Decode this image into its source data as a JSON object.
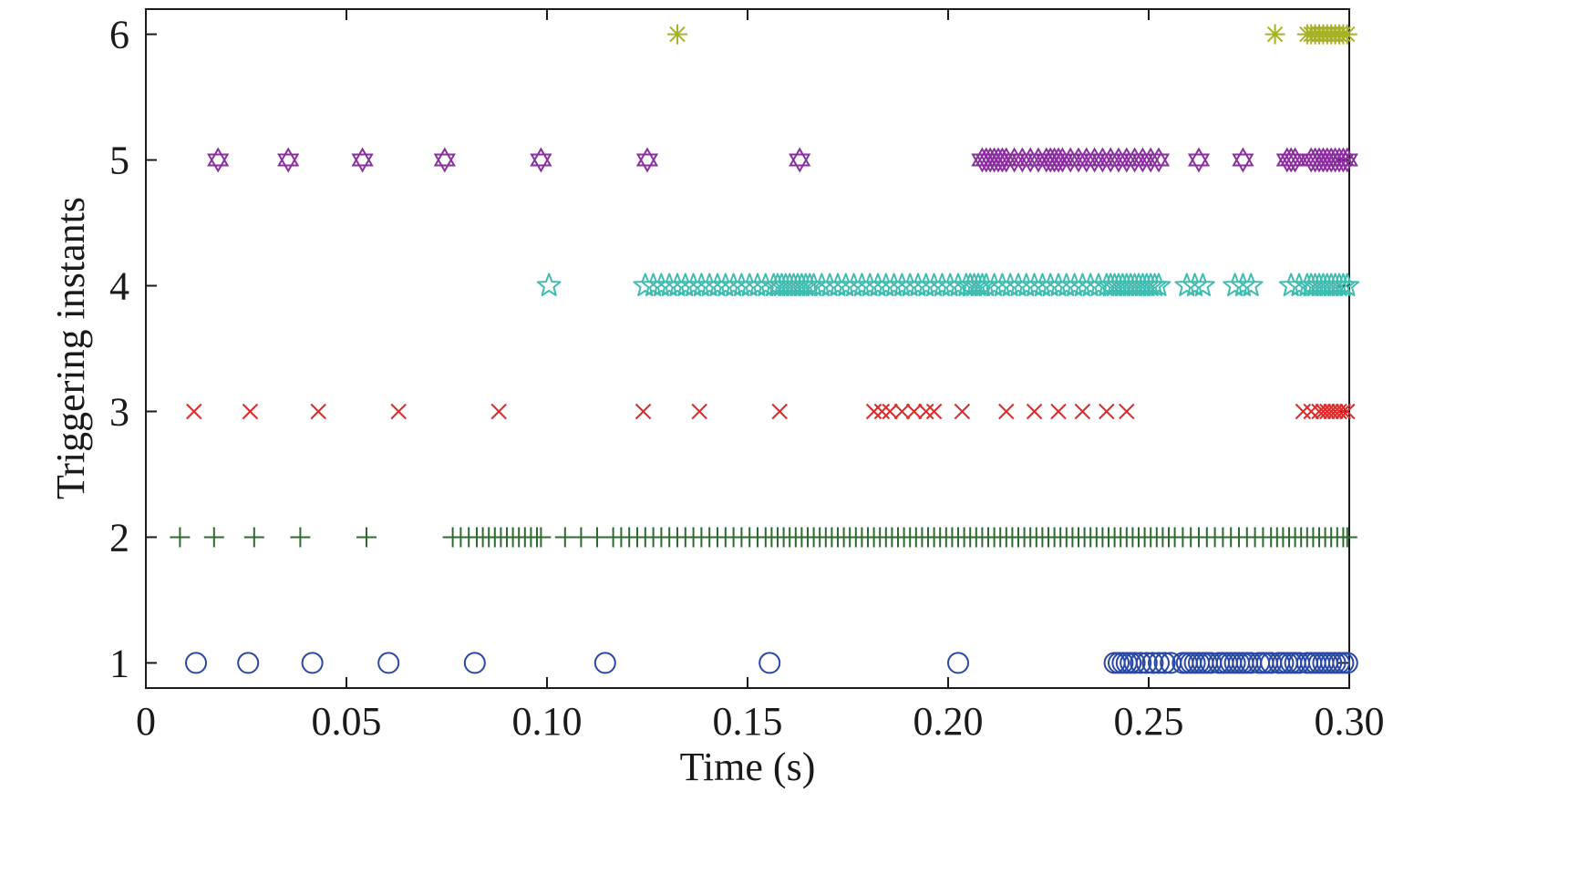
{
  "chart_data": {
    "type": "scatter",
    "title": "",
    "xlabel": "Time (s)",
    "ylabel": "Triggering instants",
    "xlim": [
      0,
      0.3
    ],
    "ylim": [
      0.8,
      6.2
    ],
    "x_ticks": [
      0,
      0.05,
      0.1,
      0.15,
      0.2,
      0.25,
      0.3
    ],
    "x_tick_labels": [
      "0",
      "0.05",
      "0.10",
      "0.15",
      "0.20",
      "0.25",
      "0.30"
    ],
    "y_ticks": [
      1,
      2,
      3,
      4,
      5,
      6
    ],
    "y_tick_labels": [
      "1",
      "2",
      "3",
      "4",
      "5",
      "6"
    ],
    "grid": false,
    "legend": "none",
    "series": [
      {
        "y": 1,
        "marker": "circle",
        "color": "#2a48a6",
        "x": [
          0.0125,
          0.0255,
          0.0415,
          0.0605,
          0.082,
          0.1145,
          0.1555,
          0.2025,
          0.2415,
          0.2425,
          0.2435,
          0.2445,
          0.2455,
          0.2465,
          0.248,
          0.2495,
          0.251,
          0.2525,
          0.254,
          0.2555,
          0.2585,
          0.2595,
          0.2605,
          0.2615,
          0.2625,
          0.2635,
          0.2645,
          0.2655,
          0.2675,
          0.2685,
          0.2695,
          0.2705,
          0.2715,
          0.2725,
          0.2735,
          0.2745,
          0.2755,
          0.2775,
          0.2785,
          0.2795,
          0.2805,
          0.2825,
          0.2835,
          0.2845,
          0.2855,
          0.2865,
          0.2875,
          0.2895,
          0.2905,
          0.2915,
          0.2925,
          0.2935,
          0.2945,
          0.2955,
          0.2965,
          0.2975,
          0.2985,
          0.2995
        ]
      },
      {
        "y": 2,
        "marker": "plus",
        "color": "#2d6a2d",
        "x": [
          0.0085,
          0.017,
          0.027,
          0.0385,
          0.055,
          0.0765,
          0.0785,
          0.0805,
          0.0825,
          0.084,
          0.0855,
          0.087,
          0.0885,
          0.09,
          0.0915,
          0.093,
          0.0945,
          0.096,
          0.0975,
          0.0985,
          0.1045,
          0.1085,
          0.1125,
          0.1165,
          0.1185,
          0.1205,
          0.1225,
          0.1245,
          0.1265,
          0.1285,
          0.1305,
          0.1325,
          0.1345,
          0.1365,
          0.1385,
          0.1405,
          0.1425,
          0.1445,
          0.1465,
          0.1485,
          0.1505,
          0.1525,
          0.1545,
          0.156,
          0.1575,
          0.159,
          0.1605,
          0.162,
          0.1635,
          0.165,
          0.1665,
          0.168,
          0.1695,
          0.171,
          0.1725,
          0.174,
          0.1755,
          0.177,
          0.1785,
          0.18,
          0.1815,
          0.183,
          0.1845,
          0.186,
          0.1875,
          0.189,
          0.1905,
          0.192,
          0.1935,
          0.195,
          0.1965,
          0.198,
          0.1995,
          0.201,
          0.2025,
          0.204,
          0.2055,
          0.207,
          0.2085,
          0.21,
          0.2115,
          0.213,
          0.2145,
          0.216,
          0.2175,
          0.219,
          0.2205,
          0.222,
          0.2235,
          0.225,
          0.2265,
          0.228,
          0.2295,
          0.231,
          0.2325,
          0.234,
          0.2355,
          0.237,
          0.2385,
          0.24,
          0.2415,
          0.243,
          0.2445,
          0.246,
          0.2475,
          0.249,
          0.2505,
          0.252,
          0.2535,
          0.255,
          0.2565,
          0.2585,
          0.2605,
          0.2625,
          0.2645,
          0.2665,
          0.2685,
          0.2705,
          0.2725,
          0.2745,
          0.2765,
          0.2785,
          0.2805,
          0.282,
          0.2835,
          0.285,
          0.2865,
          0.288,
          0.2895,
          0.291,
          0.2925,
          0.294,
          0.2955,
          0.297,
          0.2985,
          0.2995
        ]
      },
      {
        "y": 3,
        "marker": "cross",
        "color": "#dd2a2a",
        "x": [
          0.012,
          0.026,
          0.043,
          0.063,
          0.088,
          0.124,
          0.138,
          0.158,
          0.1815,
          0.1835,
          0.1855,
          0.1885,
          0.1915,
          0.1945,
          0.1965,
          0.2035,
          0.2145,
          0.2215,
          0.2275,
          0.2335,
          0.2395,
          0.2445,
          0.2885,
          0.2905,
          0.2925,
          0.2935,
          0.2945,
          0.2955,
          0.2965,
          0.2975,
          0.2985,
          0.2995
        ]
      },
      {
        "y": 4,
        "marker": "star5",
        "color": "#3fbcb0",
        "x": [
          0.1005,
          0.1245,
          0.1265,
          0.1285,
          0.1305,
          0.1325,
          0.1345,
          0.1365,
          0.1385,
          0.1405,
          0.1425,
          0.1445,
          0.1465,
          0.1485,
          0.1505,
          0.1525,
          0.1545,
          0.1565,
          0.1575,
          0.1585,
          0.1595,
          0.1605,
          0.1615,
          0.1625,
          0.1635,
          0.1645,
          0.1655,
          0.1665,
          0.1685,
          0.1705,
          0.1725,
          0.1745,
          0.1765,
          0.1785,
          0.1805,
          0.1825,
          0.1845,
          0.1865,
          0.1885,
          0.1905,
          0.1925,
          0.1945,
          0.1965,
          0.1985,
          0.2005,
          0.2025,
          0.2045,
          0.2055,
          0.2065,
          0.2075,
          0.2085,
          0.2095,
          0.2115,
          0.2135,
          0.2155,
          0.2175,
          0.2195,
          0.2215,
          0.2235,
          0.2255,
          0.2275,
          0.2295,
          0.2315,
          0.2335,
          0.2355,
          0.2375,
          0.2395,
          0.2405,
          0.2415,
          0.2425,
          0.2435,
          0.2445,
          0.2455,
          0.2465,
          0.2475,
          0.2485,
          0.2495,
          0.2505,
          0.2515,
          0.2525,
          0.2595,
          0.2615,
          0.2635,
          0.2715,
          0.2735,
          0.2755,
          0.2855,
          0.2875,
          0.2895,
          0.2905,
          0.2915,
          0.2925,
          0.2935,
          0.2945,
          0.2955,
          0.2965,
          0.2975,
          0.2985,
          0.2995
        ]
      },
      {
        "y": 5,
        "marker": "hexagram",
        "color": "#8b2fa0",
        "x": [
          0.018,
          0.0355,
          0.054,
          0.0745,
          0.0985,
          0.125,
          0.163,
          0.2085,
          0.2095,
          0.2105,
          0.2115,
          0.2125,
          0.2135,
          0.2145,
          0.2165,
          0.2185,
          0.2205,
          0.2225,
          0.2245,
          0.2255,
          0.2265,
          0.2275,
          0.2285,
          0.2305,
          0.2325,
          0.2345,
          0.2365,
          0.2385,
          0.2405,
          0.2425,
          0.2445,
          0.2465,
          0.2485,
          0.2505,
          0.2525,
          0.2625,
          0.2735,
          0.2845,
          0.2855,
          0.2865,
          0.2905,
          0.2915,
          0.2925,
          0.2935,
          0.2945,
          0.2955,
          0.2965,
          0.2975,
          0.2985,
          0.2995
        ]
      },
      {
        "y": 6,
        "marker": "asterisk",
        "color": "#a8b227",
        "x": [
          0.1325,
          0.2815,
          0.2895,
          0.2905,
          0.2915,
          0.2925,
          0.2935,
          0.2945,
          0.2955,
          0.2965,
          0.2975,
          0.2985,
          0.2995
        ]
      }
    ]
  }
}
